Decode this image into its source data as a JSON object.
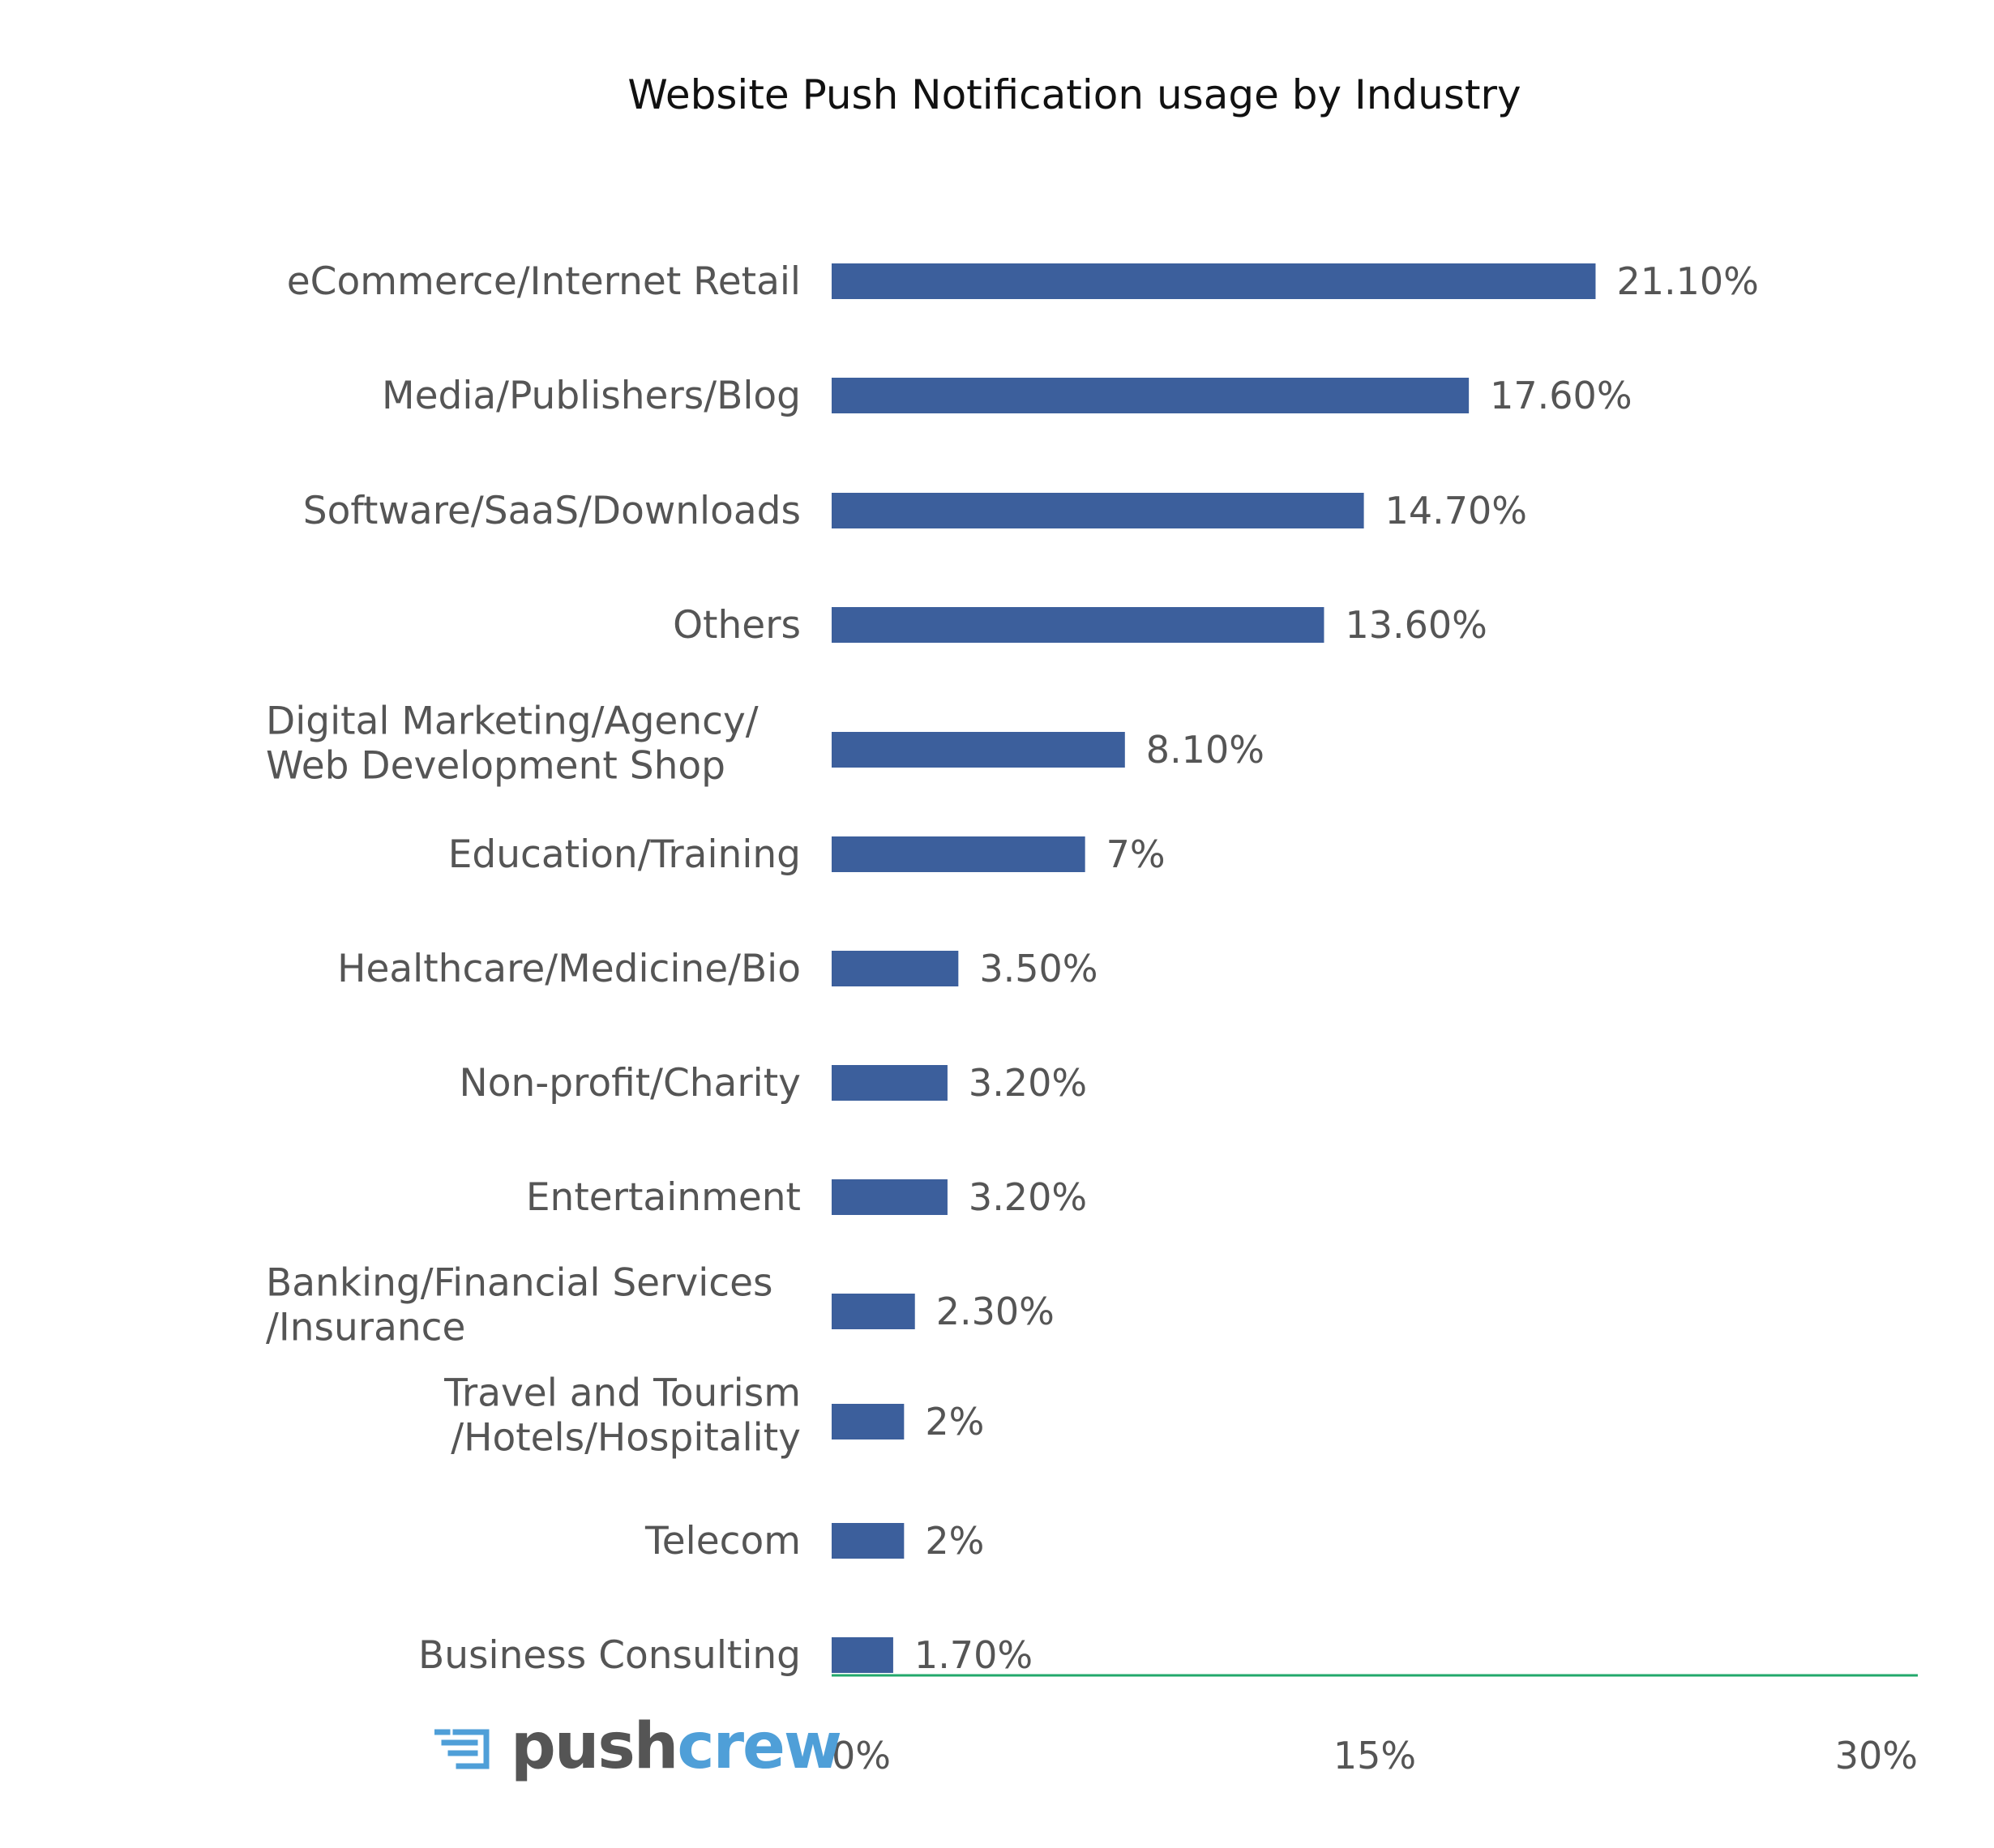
{
  "chart_data": {
    "type": "bar",
    "orientation": "horizontal",
    "title": "Website Push Notification usage by Industry",
    "categories": [
      [
        "eCommerce/Internet Retail"
      ],
      [
        "Media/Publishers/Blog"
      ],
      [
        "Software/SaaS/Downloads"
      ],
      [
        "Others"
      ],
      [
        "Digital Marketing/Agency/",
        "Web Development Shop"
      ],
      [
        "Education/Training"
      ],
      [
        "Healthcare/Medicine/Bio"
      ],
      [
        "Non-profit/Charity"
      ],
      [
        "Entertainment"
      ],
      [
        "Banking/Financial Services",
        "/Insurance"
      ],
      [
        "Travel and Tourism",
        "/Hotels/Hospitality"
      ],
      [
        "Telecom"
      ],
      [
        "Business Consulting"
      ]
    ],
    "values": [
      21.1,
      17.6,
      14.7,
      13.6,
      8.1,
      7,
      3.5,
      3.2,
      3.2,
      2.3,
      2,
      2,
      1.7
    ],
    "value_labels": [
      "21.10%",
      "17.60%",
      "14.70%",
      "13.60%",
      "8.10%",
      "7%",
      "3.50%",
      "3.20%",
      "3.20%",
      "2.30%",
      "2%",
      "2%",
      "1.70%"
    ],
    "xlim": [
      0,
      30
    ],
    "xticks": [
      "0%",
      "15%",
      "30%"
    ],
    "bar_color": "#3c5f9c",
    "axis_color": "#22a86b",
    "grid": false
  },
  "logo": {
    "text_dark": "push",
    "text_accent": "crew",
    "icon": "pushcrew-logo-icon",
    "dark_color": "#555555",
    "accent_color": "#4f9fd8"
  }
}
